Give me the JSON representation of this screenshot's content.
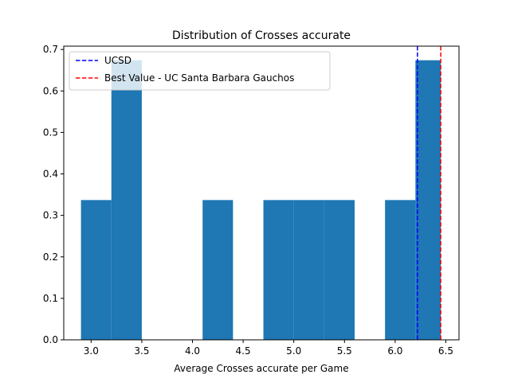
{
  "chart_data": {
    "type": "bar",
    "title": "Distribution of Crosses accurate",
    "xlabel": "Average Crosses accurate per Game",
    "ylabel": "",
    "xlim": [
      2.73,
      6.63
    ],
    "ylim": [
      0,
      0.708
    ],
    "xticks": [
      "3.0",
      "3.5",
      "4.0",
      "4.5",
      "5.0",
      "5.5",
      "6.0",
      "6.5"
    ],
    "yticks": [
      "0.0",
      "0.1",
      "0.2",
      "0.3",
      "0.4",
      "0.5",
      "0.6",
      "0.7"
    ],
    "bin_edges": [
      2.9,
      3.2,
      3.5,
      3.8,
      4.1,
      4.4,
      4.7,
      5.0,
      5.3,
      5.6,
      5.9,
      6.2,
      6.45
    ],
    "values": [
      0.337,
      0.674,
      0,
      0,
      0.337,
      0,
      0.337,
      0.337,
      0.337,
      0,
      0.337,
      0.674
    ],
    "bar_color": "#1f77b4",
    "lines": [
      {
        "name": "UCSD",
        "x": 6.22,
        "color": "#0000ff"
      },
      {
        "name": "Best Value - UC Santa Barbara Gauchos",
        "x": 6.45,
        "color": "#ff0000"
      }
    ],
    "legend_position": "top-left",
    "grid": false
  }
}
